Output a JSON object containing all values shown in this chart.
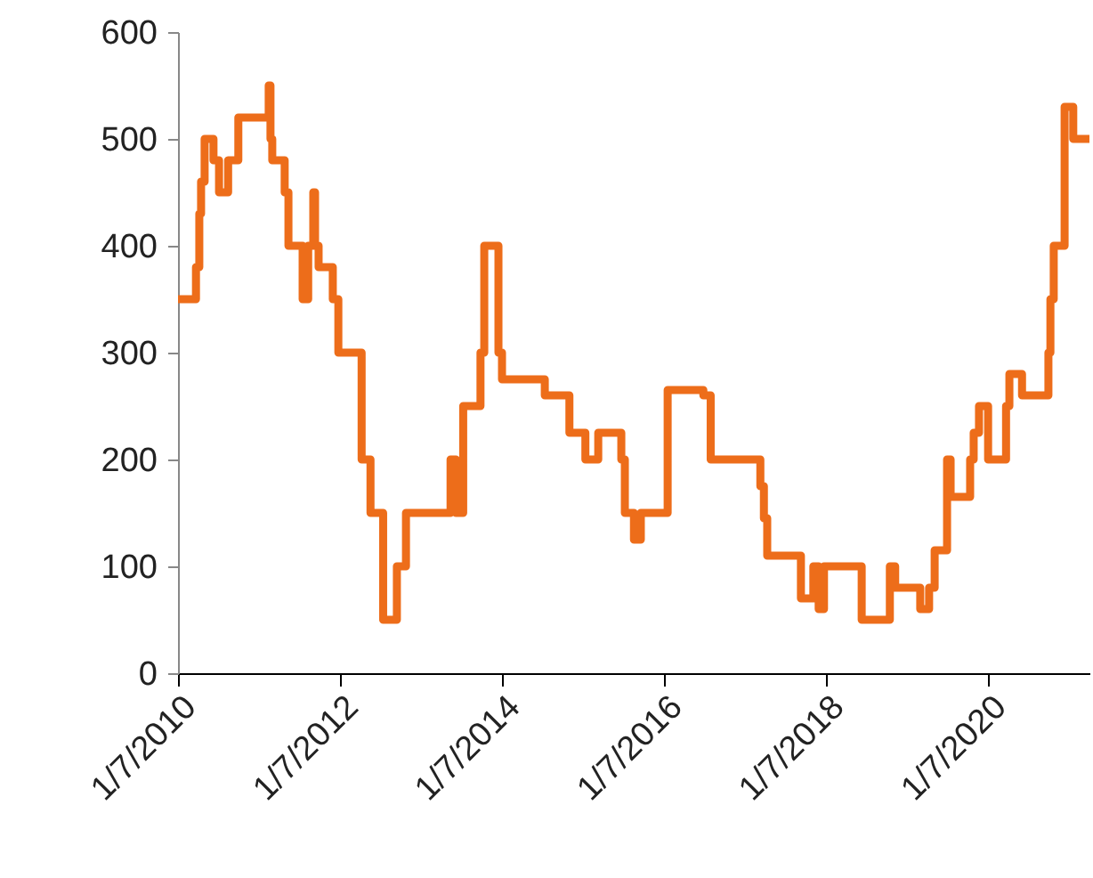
{
  "chart_data": {
    "type": "step",
    "color": "#ed6d1a",
    "line_style": "solid",
    "marker": "none",
    "grid": false,
    "x": [
      "2010-07-01",
      "2010-09-20",
      "2010-10-05",
      "2010-10-13",
      "2010-10-29",
      "2010-12-08",
      "2011-01-02",
      "2011-02-12",
      "2011-03-30",
      "2011-08-14",
      "2011-08-22",
      "2011-08-30",
      "2011-10-25",
      "2011-11-11",
      "2012-01-14",
      "2012-02-08",
      "2012-03-02",
      "2012-03-10",
      "2012-03-26",
      "2012-05-29",
      "2012-06-23",
      "2012-10-06",
      "2012-11-15",
      "2013-01-11",
      "2013-03-14",
      "2013-04-24",
      "2013-11-11",
      "2013-12-05",
      "2014-01-07",
      "2014-03-26",
      "2014-04-12",
      "2014-06-15",
      "2014-07-01",
      "2015-01-10",
      "2015-05-01",
      "2015-07-12",
      "2015-09-08",
      "2015-12-21",
      "2016-01-06",
      "2016-02-16",
      "2016-03-18",
      "2016-07-17",
      "2016-12-25",
      "2017-01-27",
      "2017-09-08",
      "2017-09-24",
      "2017-10-09",
      "2018-03-10",
      "2018-05-05",
      "2018-05-29",
      "2018-06-22",
      "2018-12-09",
      "2019-04-15",
      "2019-05-09",
      "2019-08-30",
      "2019-10-09",
      "2019-11-03",
      "2019-12-29",
      "2020-01-14",
      "2020-04-11",
      "2020-04-27",
      "2020-05-21",
      "2020-07-01",
      "2020-09-20",
      "2020-10-05",
      "2020-12-01",
      "2021-03-30",
      "2021-04-08",
      "2021-04-23",
      "2021-06-11",
      "2021-07-20",
      "2021-10-01"
    ],
    "values": [
      350,
      380,
      430,
      460,
      500,
      480,
      450,
      480,
      520,
      550,
      500,
      480,
      450,
      400,
      350,
      400,
      450,
      400,
      380,
      350,
      300,
      200,
      150,
      50,
      100,
      150,
      200,
      150,
      250,
      300,
      400,
      300,
      275,
      260,
      225,
      200,
      225,
      200,
      150,
      125,
      150,
      265,
      260,
      200,
      175,
      145,
      110,
      70,
      100,
      60,
      100,
      50,
      100,
      80,
      60,
      80,
      115,
      200,
      165,
      200,
      225,
      250,
      200,
      250,
      280,
      260,
      300,
      350,
      400,
      530,
      500,
      500
    ],
    "xlim": [
      "2010-07-01",
      "2021-10-01"
    ],
    "xticks": [
      {
        "value": "2010-07-01",
        "label": "1/7/2010"
      },
      {
        "value": "2012-07-01",
        "label": "1/7/2012"
      },
      {
        "value": "2014-07-01",
        "label": "1/7/2014"
      },
      {
        "value": "2016-07-01",
        "label": "1/7/2016"
      },
      {
        "value": "2018-07-01",
        "label": "1/7/2018"
      },
      {
        "value": "2020-07-01",
        "label": "1/7/2020"
      }
    ],
    "ylim": [
      0,
      600
    ],
    "yticks": [
      0,
      100,
      200,
      300,
      400,
      500,
      600
    ]
  }
}
